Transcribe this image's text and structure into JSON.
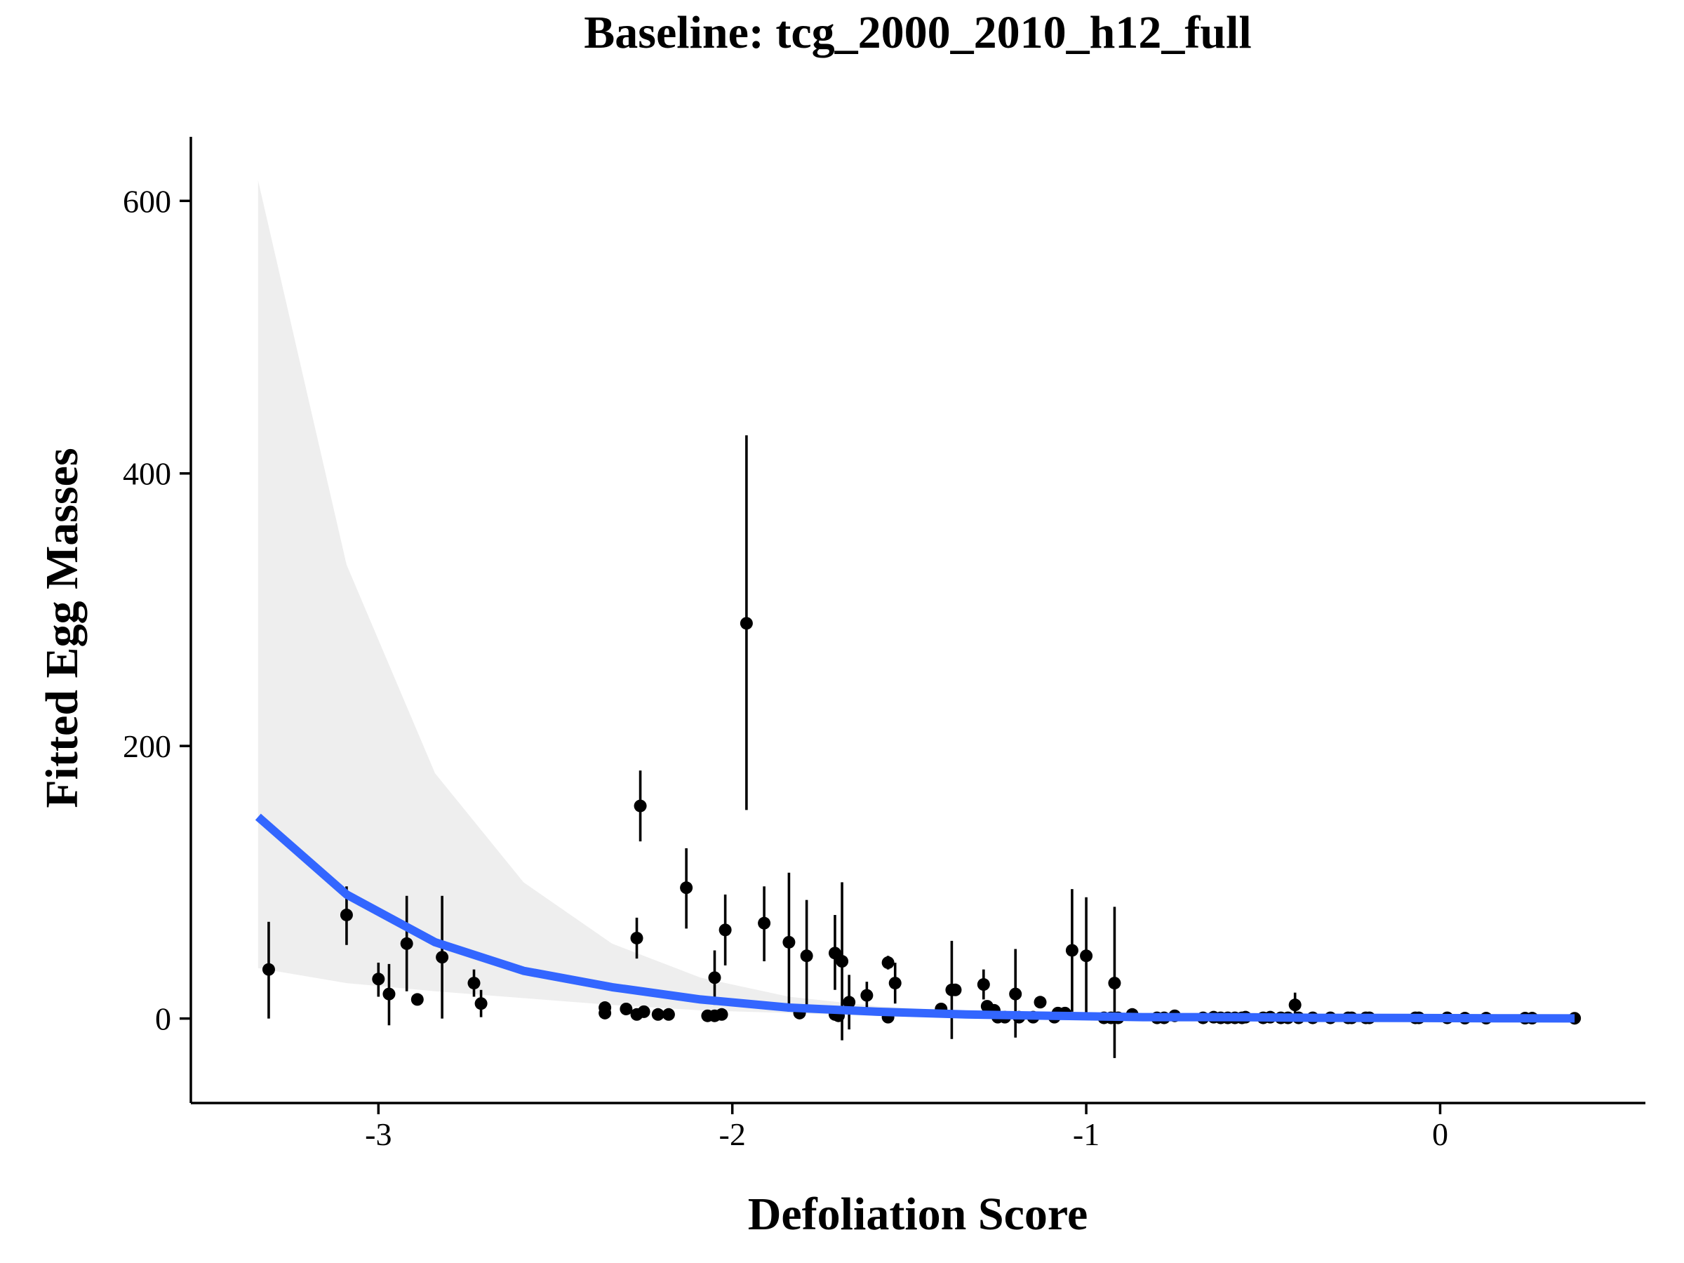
{
  "chart_data": {
    "type": "scatter",
    "title": "Baseline: tcg_2000_2010_h12_full",
    "xlabel": "Defoliation Score",
    "ylabel": "Fitted Egg Masses",
    "xlim": [
      -3.53,
      0.58
    ],
    "ylim": [
      -62,
      647
    ],
    "x_ticks": [
      -3,
      -2,
      -1,
      0
    ],
    "y_ticks": [
      0,
      200,
      400,
      600
    ],
    "x_tick_labels": [
      "-3",
      "-2",
      "-1",
      "0"
    ],
    "y_tick_labels": [
      "0",
      "200",
      "400",
      "600"
    ],
    "grid": false,
    "legend": "none",
    "colors": {
      "fit_line": "#3366ff",
      "ribbon": "#ebebeb",
      "points": "#000000",
      "axes": "#000000"
    },
    "fit_line": {
      "x": [
        -3.34,
        -3.09,
        -2.84,
        -2.59,
        -2.34,
        -2.09,
        -1.84,
        -1.59,
        -1.34,
        -1.09,
        -0.84,
        -0.59,
        -0.34,
        -0.09,
        0.16,
        0.38
      ],
      "y": [
        148,
        91,
        56,
        35,
        23,
        14,
        8,
        5,
        3,
        2,
        1,
        1,
        0.5,
        0.4,
        0.2,
        0.1
      ],
      "lower": [
        37,
        26,
        20,
        15,
        10,
        6,
        4,
        2,
        1,
        0.8,
        0.4,
        0.3,
        0.2,
        0.1,
        0.05,
        0.02
      ],
      "upper": [
        615,
        333,
        180,
        100,
        55,
        30,
        16,
        9,
        5,
        3,
        2,
        1,
        0.8,
        0.5,
        0.3,
        0.2
      ]
    },
    "points": [
      {
        "x": -3.31,
        "y": 36,
        "lo": 0,
        "hi": 71
      },
      {
        "x": -3.09,
        "y": 76,
        "lo": 54,
        "hi": 97
      },
      {
        "x": -3.0,
        "y": 29,
        "lo": 16,
        "hi": 41
      },
      {
        "x": -2.97,
        "y": 18,
        "lo": -5,
        "hi": 40
      },
      {
        "x": -2.92,
        "y": 55,
        "lo": 20,
        "hi": 90
      },
      {
        "x": -2.89,
        "y": 14,
        "lo": 12,
        "hi": 16
      },
      {
        "x": -2.82,
        "y": 45,
        "lo": 0,
        "hi": 90
      },
      {
        "x": -2.73,
        "y": 26,
        "lo": 16,
        "hi": 36
      },
      {
        "x": -2.71,
        "y": 11,
        "lo": 1,
        "hi": 21
      },
      {
        "x": -2.36,
        "y": 8,
        "lo": 6,
        "hi": 10
      },
      {
        "x": -2.36,
        "y": 4,
        "lo": 3,
        "hi": 5
      },
      {
        "x": -2.3,
        "y": 7,
        "lo": 5,
        "hi": 9
      },
      {
        "x": -2.27,
        "y": 59,
        "lo": 44,
        "hi": 74
      },
      {
        "x": -2.27,
        "y": 3,
        "lo": 2,
        "hi": 4
      },
      {
        "x": -2.26,
        "y": 156,
        "lo": 130,
        "hi": 182
      },
      {
        "x": -2.25,
        "y": 5,
        "lo": 4,
        "hi": 6
      },
      {
        "x": -2.21,
        "y": 3,
        "lo": 2,
        "hi": 4
      },
      {
        "x": -2.18,
        "y": 3,
        "lo": 2,
        "hi": 4
      },
      {
        "x": -2.13,
        "y": 96,
        "lo": 66,
        "hi": 125
      },
      {
        "x": -2.07,
        "y": 2,
        "lo": 1,
        "hi": 3
      },
      {
        "x": -2.05,
        "y": 30,
        "lo": 10,
        "hi": 50
      },
      {
        "x": -2.05,
        "y": 2,
        "lo": 1,
        "hi": 3
      },
      {
        "x": -2.03,
        "y": 3,
        "lo": 2,
        "hi": 4
      },
      {
        "x": -2.02,
        "y": 65,
        "lo": 39,
        "hi": 91
      },
      {
        "x": -1.96,
        "y": 290,
        "lo": 153,
        "hi": 428
      },
      {
        "x": -1.91,
        "y": 70,
        "lo": 42,
        "hi": 97
      },
      {
        "x": -1.84,
        "y": 56,
        "lo": 5,
        "hi": 107
      },
      {
        "x": -1.81,
        "y": 4,
        "lo": 3,
        "hi": 5
      },
      {
        "x": -1.79,
        "y": 46,
        "lo": 6,
        "hi": 87
      },
      {
        "x": -1.71,
        "y": 48,
        "lo": 21,
        "hi": 76
      },
      {
        "x": -1.71,
        "y": 3,
        "lo": 2,
        "hi": 4
      },
      {
        "x": -1.7,
        "y": 2,
        "lo": 1,
        "hi": 3
      },
      {
        "x": -1.69,
        "y": 42,
        "lo": -16,
        "hi": 100
      },
      {
        "x": -1.67,
        "y": 12,
        "lo": -8,
        "hi": 32
      },
      {
        "x": -1.62,
        "y": 17,
        "lo": 7,
        "hi": 27
      },
      {
        "x": -1.56,
        "y": 41,
        "lo": 36,
        "hi": 46
      },
      {
        "x": -1.56,
        "y": 1,
        "lo": 0,
        "hi": 2
      },
      {
        "x": -1.54,
        "y": 26,
        "lo": 11,
        "hi": 41
      },
      {
        "x": -1.41,
        "y": 7,
        "lo": 3,
        "hi": 11
      },
      {
        "x": -1.38,
        "y": 21,
        "lo": -15,
        "hi": 57
      },
      {
        "x": -1.37,
        "y": 21,
        "lo": 18,
        "hi": 24
      },
      {
        "x": -1.29,
        "y": 25,
        "lo": 14,
        "hi": 36
      },
      {
        "x": -1.28,
        "y": 9,
        "lo": 7,
        "hi": 11
      },
      {
        "x": -1.26,
        "y": 6,
        "lo": 5,
        "hi": 7
      },
      {
        "x": -1.25,
        "y": 1,
        "lo": 0,
        "hi": 2
      },
      {
        "x": -1.23,
        "y": 1,
        "lo": 0,
        "hi": 2
      },
      {
        "x": -1.2,
        "y": 18,
        "lo": -14,
        "hi": 51
      },
      {
        "x": -1.19,
        "y": 1,
        "lo": 0,
        "hi": 2
      },
      {
        "x": -1.15,
        "y": 1,
        "lo": 0,
        "hi": 2
      },
      {
        "x": -1.13,
        "y": 12,
        "lo": 10,
        "hi": 14
      },
      {
        "x": -1.09,
        "y": 1,
        "lo": 0,
        "hi": 2
      },
      {
        "x": -1.08,
        "y": 4,
        "lo": 3,
        "hi": 5
      },
      {
        "x": -1.06,
        "y": 4,
        "lo": 3,
        "hi": 5
      },
      {
        "x": -1.04,
        "y": 50,
        "lo": 5,
        "hi": 95
      },
      {
        "x": -1.0,
        "y": 46,
        "lo": 3,
        "hi": 89
      },
      {
        "x": -0.95,
        "y": 0.5,
        "lo": 0,
        "hi": 1
      },
      {
        "x": -0.93,
        "y": 0.5,
        "lo": 0,
        "hi": 1
      },
      {
        "x": -0.92,
        "y": 26,
        "lo": -29,
        "hi": 82
      },
      {
        "x": -0.91,
        "y": 0.5,
        "lo": 0,
        "hi": 1
      },
      {
        "x": -0.87,
        "y": 3,
        "lo": 2,
        "hi": 4
      },
      {
        "x": -0.8,
        "y": 0.5,
        "lo": 0,
        "hi": 1
      },
      {
        "x": -0.78,
        "y": 0.5,
        "lo": 0,
        "hi": 1
      },
      {
        "x": -0.75,
        "y": 2,
        "lo": 1,
        "hi": 3
      },
      {
        "x": -0.67,
        "y": 0.5,
        "lo": 0,
        "hi": 1
      },
      {
        "x": -0.64,
        "y": 1,
        "lo": 0,
        "hi": 2
      },
      {
        "x": -0.62,
        "y": 0.5,
        "lo": 0,
        "hi": 1
      },
      {
        "x": -0.6,
        "y": 0.5,
        "lo": 0,
        "hi": 1
      },
      {
        "x": -0.58,
        "y": 0.5,
        "lo": 0,
        "hi": 1
      },
      {
        "x": -0.56,
        "y": 0.5,
        "lo": 0,
        "hi": 1
      },
      {
        "x": -0.55,
        "y": 1,
        "lo": 0,
        "hi": 2
      },
      {
        "x": -0.5,
        "y": 0.5,
        "lo": 0,
        "hi": 1
      },
      {
        "x": -0.48,
        "y": 1,
        "lo": 0,
        "hi": 2
      },
      {
        "x": -0.45,
        "y": 0.5,
        "lo": 0,
        "hi": 1
      },
      {
        "x": -0.43,
        "y": 0.5,
        "lo": 0,
        "hi": 1
      },
      {
        "x": -0.41,
        "y": 10,
        "lo": 2,
        "hi": 19
      },
      {
        "x": -0.4,
        "y": 0.5,
        "lo": 0,
        "hi": 1
      },
      {
        "x": -0.36,
        "y": 0.5,
        "lo": 0,
        "hi": 1
      },
      {
        "x": -0.31,
        "y": 0.5,
        "lo": 0,
        "hi": 1
      },
      {
        "x": -0.26,
        "y": 0.5,
        "lo": 0,
        "hi": 1
      },
      {
        "x": -0.25,
        "y": 0.5,
        "lo": 0,
        "hi": 1
      },
      {
        "x": -0.21,
        "y": 0.5,
        "lo": 0,
        "hi": 1
      },
      {
        "x": -0.2,
        "y": 0.5,
        "lo": 0,
        "hi": 1
      },
      {
        "x": -0.07,
        "y": 0.5,
        "lo": 0,
        "hi": 1
      },
      {
        "x": -0.06,
        "y": 0.5,
        "lo": 0,
        "hi": 1
      },
      {
        "x": 0.02,
        "y": 0.5,
        "lo": 0,
        "hi": 1
      },
      {
        "x": 0.07,
        "y": 0.3,
        "lo": 0,
        "hi": 0.6
      },
      {
        "x": 0.13,
        "y": 0.3,
        "lo": 0,
        "hi": 0.6
      },
      {
        "x": 0.24,
        "y": 0.3,
        "lo": 0,
        "hi": 0.6
      },
      {
        "x": 0.26,
        "y": 0.3,
        "lo": 0,
        "hi": 0.6
      },
      {
        "x": 0.38,
        "y": 0.2,
        "lo": 0,
        "hi": 0.4
      }
    ]
  }
}
